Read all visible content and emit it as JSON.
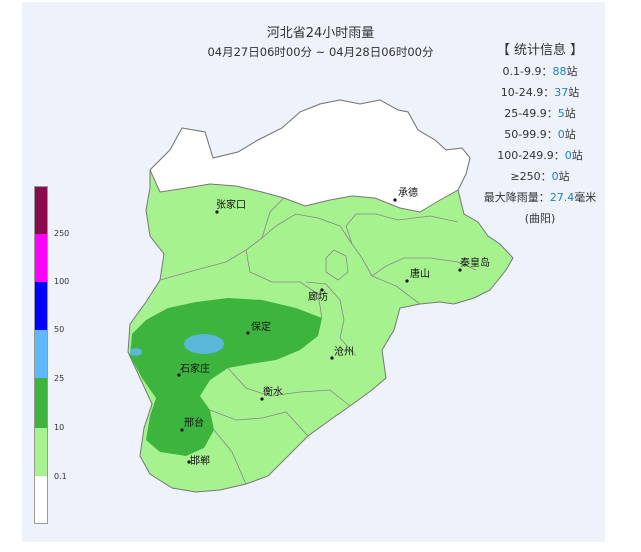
{
  "title": "河北省24小时雨量",
  "subtitle": "04月27日06时00分 ~ 04月28日06时00分",
  "stats": {
    "header": "【 统计信息 】",
    "rows": [
      {
        "range": "0.1-9.9：",
        "count": "88",
        "unit": "站"
      },
      {
        "range": "10-24.9：",
        "count": "37",
        "unit": "站"
      },
      {
        "range": "25-49.9：",
        "count": "5",
        "unit": "站"
      },
      {
        "range": "50-99.9：",
        "count": "0",
        "unit": "站"
      },
      {
        "range": "100-249.9：",
        "count": "0",
        "unit": "站"
      },
      {
        "range": "≥250：",
        "count": "0",
        "unit": "站"
      }
    ],
    "max_label": "最大降雨量：",
    "max_value": "27.4",
    "max_unit": "毫米",
    "max_station": "(曲阳)"
  },
  "legend": {
    "labels": [
      "250",
      "100",
      "50",
      "25",
      "10",
      "0.1"
    ],
    "colors": [
      "#8b0a4a",
      "#ff00ff",
      "#0000ff",
      "#61b8ff",
      "#3db43d",
      "#a6f28f",
      "#ffffff"
    ]
  },
  "cities": {
    "zhangjiakou": "张家口",
    "chengde": "承德",
    "tangshan": "唐山",
    "qinhuangdao": "秦皇岛",
    "langfang": "廊坊",
    "baoding": "保定",
    "cangzhou": "沧州",
    "shijiazhuang": "石家庄",
    "hengshui": "衡水",
    "xingtai": "邢台",
    "handan": "邯郸"
  }
}
